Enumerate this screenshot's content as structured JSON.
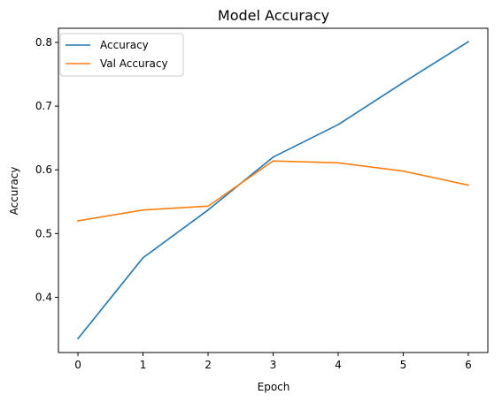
{
  "chart_data": {
    "type": "line",
    "title": "Model Accuracy",
    "xlabel": "Epoch",
    "ylabel": "Accuracy",
    "x": [
      0,
      1,
      2,
      3,
      4,
      5,
      6
    ],
    "xticks": [
      "0",
      "1",
      "2",
      "3",
      "4",
      "5",
      "6"
    ],
    "yticks": [
      "0.4",
      "0.5",
      "0.6",
      "0.7",
      "0.8"
    ],
    "xlim": [
      -0.3,
      6.3
    ],
    "ylim": [
      0.3133,
      0.8222
    ],
    "grid": false,
    "legend_position": "upper-left",
    "series": [
      {
        "name": "Accuracy",
        "color": "#1f77b4",
        "values": [
          0.335,
          0.462,
          0.537,
          0.62,
          0.671,
          0.737,
          0.801
        ]
      },
      {
        "name": "Val Accuracy",
        "color": "#ff7f0e",
        "values": [
          0.52,
          0.537,
          0.543,
          0.614,
          0.611,
          0.598,
          0.576
        ]
      }
    ]
  }
}
